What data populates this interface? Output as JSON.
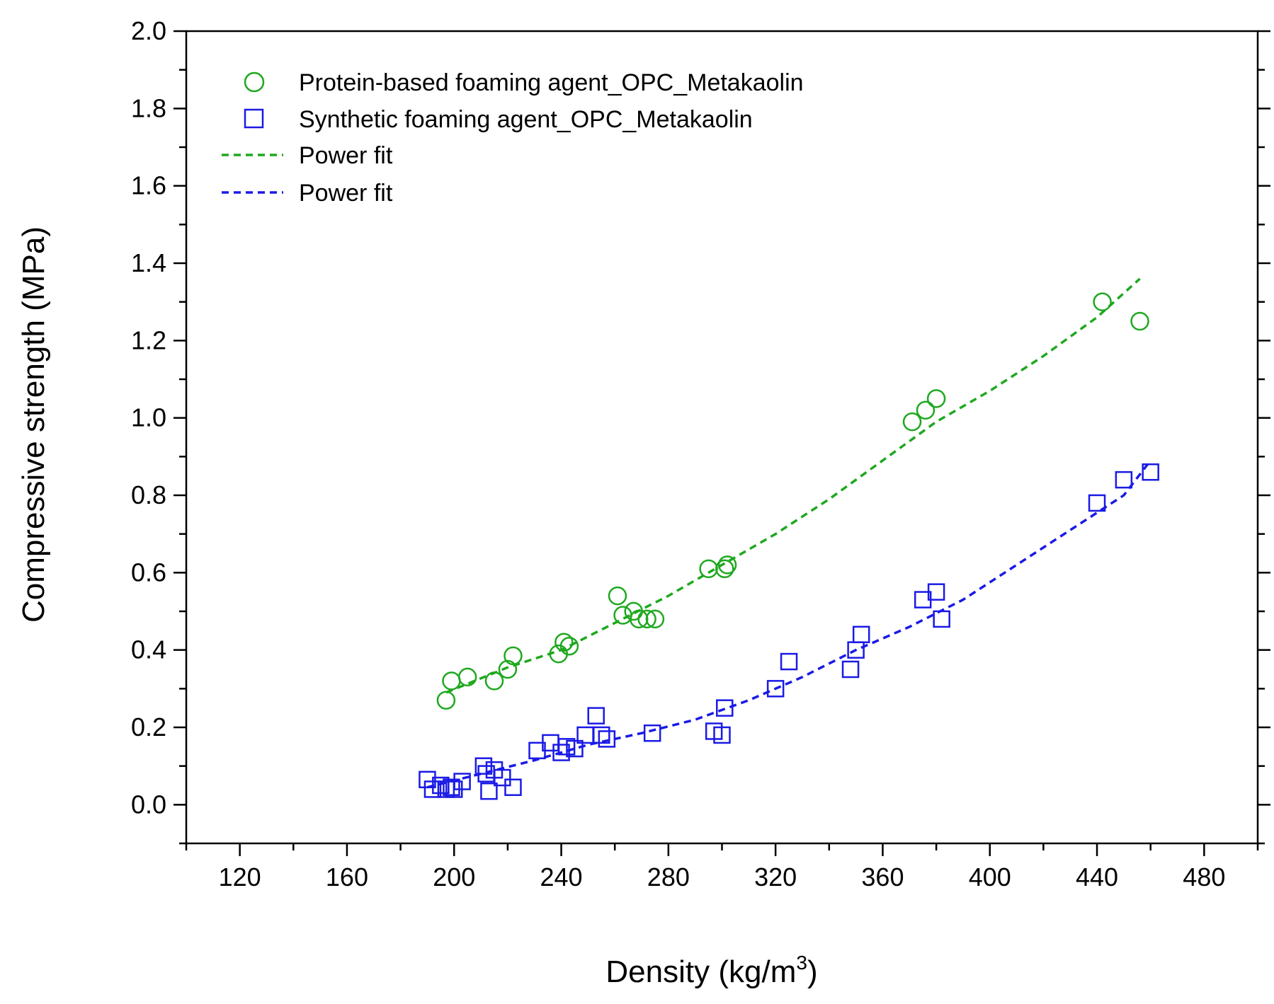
{
  "chart_data": {
    "type": "scatter",
    "title": "",
    "xlabel": "Density (kg/m",
    "xlabel_sup": "3",
    "xlabel_close": ")",
    "ylabel": "Compressive strength (MPa)",
    "xlim": [
      100,
      500
    ],
    "ylim": [
      -0.1,
      2.0
    ],
    "xticks": [
      120,
      160,
      200,
      240,
      280,
      320,
      360,
      400,
      440,
      480
    ],
    "yticks": [
      0.0,
      0.2,
      0.4,
      0.6,
      0.8,
      1.0,
      1.2,
      1.4,
      1.6,
      1.8,
      2.0
    ],
    "grid": false,
    "legend_position": "top-left",
    "series": [
      {
        "name": "Protein-based foaming agent_OPC_Metakaolin",
        "kind": "scatter",
        "marker": "circle",
        "color": "#1fa81f",
        "points": [
          [
            197,
            0.27
          ],
          [
            199,
            0.32
          ],
          [
            205,
            0.33
          ],
          [
            215,
            0.32
          ],
          [
            220,
            0.35
          ],
          [
            222,
            0.385
          ],
          [
            239,
            0.39
          ],
          [
            241,
            0.42
          ],
          [
            243,
            0.41
          ],
          [
            261,
            0.54
          ],
          [
            263,
            0.49
          ],
          [
            267,
            0.5
          ],
          [
            269,
            0.48
          ],
          [
            272,
            0.48
          ],
          [
            275,
            0.48
          ],
          [
            295,
            0.61
          ],
          [
            301,
            0.61
          ],
          [
            302,
            0.62
          ],
          [
            371,
            0.99
          ],
          [
            376,
            1.02
          ],
          [
            380,
            1.05
          ],
          [
            442,
            1.3
          ],
          [
            456,
            1.25
          ]
        ]
      },
      {
        "name": "Synthetic foaming agent_OPC_Metakaolin",
        "kind": "scatter",
        "marker": "square",
        "color": "#1a1ae6",
        "points": [
          [
            190,
            0.065
          ],
          [
            192,
            0.04
          ],
          [
            195,
            0.05
          ],
          [
            197,
            0.04
          ],
          [
            199,
            0.045
          ],
          [
            200,
            0.04
          ],
          [
            203,
            0.06
          ],
          [
            211,
            0.1
          ],
          [
            212,
            0.08
          ],
          [
            213,
            0.035
          ],
          [
            215,
            0.09
          ],
          [
            218,
            0.07
          ],
          [
            222,
            0.045
          ],
          [
            231,
            0.14
          ],
          [
            236,
            0.16
          ],
          [
            240,
            0.135
          ],
          [
            242,
            0.15
          ],
          [
            245,
            0.145
          ],
          [
            249,
            0.18
          ],
          [
            253,
            0.23
          ],
          [
            255,
            0.18
          ],
          [
            257,
            0.17
          ],
          [
            274,
            0.185
          ],
          [
            297,
            0.19
          ],
          [
            300,
            0.18
          ],
          [
            301,
            0.25
          ],
          [
            320,
            0.3
          ],
          [
            325,
            0.37
          ],
          [
            348,
            0.35
          ],
          [
            350,
            0.4
          ],
          [
            352,
            0.44
          ],
          [
            375,
            0.53
          ],
          [
            380,
            0.55
          ],
          [
            382,
            0.48
          ],
          [
            440,
            0.78
          ],
          [
            450,
            0.84
          ],
          [
            460,
            0.86
          ]
        ]
      },
      {
        "name": "Power fit",
        "kind": "line",
        "style": "dashed",
        "color": "#1fa81f",
        "points": [
          [
            197,
            0.29
          ],
          [
            220,
            0.355
          ],
          [
            240,
            0.4
          ],
          [
            260,
            0.47
          ],
          [
            280,
            0.54
          ],
          [
            300,
            0.62
          ],
          [
            320,
            0.7
          ],
          [
            340,
            0.79
          ],
          [
            360,
            0.89
          ],
          [
            380,
            0.99
          ],
          [
            400,
            1.07
          ],
          [
            420,
            1.16
          ],
          [
            440,
            1.26
          ],
          [
            456,
            1.36
          ]
        ]
      },
      {
        "name": "Power fit",
        "kind": "line",
        "style": "dashed",
        "color": "#1a1ae6",
        "points": [
          [
            190,
            0.045
          ],
          [
            210,
            0.08
          ],
          [
            230,
            0.115
          ],
          [
            250,
            0.155
          ],
          [
            270,
            0.185
          ],
          [
            290,
            0.22
          ],
          [
            310,
            0.27
          ],
          [
            330,
            0.33
          ],
          [
            350,
            0.4
          ],
          [
            370,
            0.46
          ],
          [
            390,
            0.53
          ],
          [
            410,
            0.62
          ],
          [
            430,
            0.71
          ],
          [
            450,
            0.8
          ],
          [
            460,
            0.89
          ]
        ]
      }
    ]
  }
}
